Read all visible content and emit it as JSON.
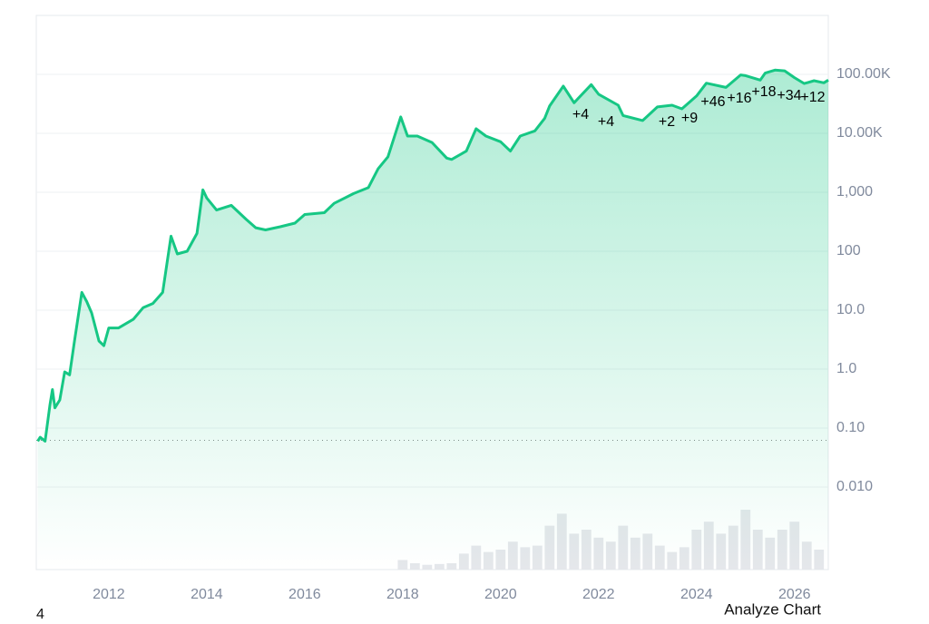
{
  "chart_data": {
    "type": "line",
    "log_scale": true,
    "grid": true,
    "color": "#16c784",
    "x": [
      2010.55,
      2010.6,
      2010.7,
      2010.8,
      2010.85,
      2010.9,
      2011.0,
      2011.1,
      2011.2,
      2011.3,
      2011.45,
      2011.55,
      2011.65,
      2011.8,
      2011.9,
      2012.0,
      2012.2,
      2012.5,
      2012.7,
      2012.9,
      2013.1,
      2013.27,
      2013.4,
      2013.6,
      2013.8,
      2013.92,
      2014.0,
      2014.2,
      2014.5,
      2014.8,
      2015.0,
      2015.2,
      2015.5,
      2015.8,
      2016.0,
      2016.4,
      2016.6,
      2017.0,
      2017.3,
      2017.5,
      2017.7,
      2017.96,
      2018.1,
      2018.3,
      2018.6,
      2018.9,
      2019.0,
      2019.3,
      2019.5,
      2019.7,
      2020.0,
      2020.2,
      2020.4,
      2020.7,
      2020.9,
      2021.0,
      2021.28,
      2021.5,
      2021.85,
      2022.0,
      2022.4,
      2022.5,
      2022.9,
      2023.2,
      2023.5,
      2023.7,
      2024.0,
      2024.2,
      2024.6,
      2024.9,
      2025.0,
      2025.3,
      2025.4,
      2025.6,
      2025.8,
      2026.0,
      2026.2,
      2026.4,
      2026.6,
      2026.69
    ],
    "values": [
      0.06,
      0.07,
      0.06,
      0.25,
      0.45,
      0.22,
      0.3,
      0.9,
      0.8,
      3,
      20,
      14,
      9,
      3,
      2.5,
      5,
      5,
      7,
      11,
      13,
      20,
      180,
      90,
      100,
      200,
      1100,
      800,
      500,
      600,
      350,
      250,
      230,
      260,
      300,
      420,
      450,
      650,
      950,
      1200,
      2500,
      4000,
      19000,
      9000,
      9000,
      7000,
      3800,
      3600,
      5000,
      12000,
      9000,
      7200,
      5000,
      9000,
      11000,
      18000,
      29000,
      63000,
      33000,
      67000,
      46000,
      30000,
      20000,
      16500,
      28000,
      30000,
      26000,
      43000,
      71000,
      60000,
      98000,
      95000,
      80000,
      105000,
      118000,
      115000,
      88000,
      70000,
      78000,
      72000,
      80000
    ],
    "xlim": [
      2010.52,
      2026.69
    ],
    "xticks": [
      2012,
      2014,
      2016,
      2018,
      2020,
      2022,
      2024,
      2026
    ],
    "ylim": [
      0.001,
      1000000
    ],
    "yticks": [
      {
        "value": 0.01,
        "label": "0.010"
      },
      {
        "value": 0.1,
        "label": "0.10"
      },
      {
        "value": 1,
        "label": "1.0"
      },
      {
        "value": 10,
        "label": "10.0"
      },
      100,
      {
        "value": 1000,
        "label": "1,000"
      },
      {
        "value": 10000,
        "label": "10.00K"
      },
      {
        "value": 100000,
        "label": "100.00K"
      }
    ],
    "reference_line": 0.062,
    "annotations": [
      "+4",
      "+4",
      "+2",
      "+9",
      "+46",
      "+16",
      "+18",
      "+34",
      "+12"
    ],
    "volume": {
      "color": "#e5e7eb",
      "ylim": [
        0,
        100
      ],
      "x": [
        2018.0,
        2018.25,
        2018.5,
        2018.75,
        2019.0,
        2019.25,
        2019.5,
        2019.75,
        2020.0,
        2020.25,
        2020.5,
        2020.75,
        2021.0,
        2021.25,
        2021.5,
        2021.75,
        2022.0,
        2022.25,
        2022.5,
        2022.75,
        2023.0,
        2023.25,
        2023.5,
        2023.75,
        2024.0,
        2024.25,
        2024.5,
        2024.75,
        2025.0,
        2025.25,
        2025.5,
        2025.75,
        2026.0,
        2026.25,
        2026.5
      ],
      "values": [
        12,
        8,
        6,
        7,
        8,
        20,
        30,
        22,
        25,
        35,
        28,
        30,
        55,
        70,
        45,
        50,
        40,
        35,
        55,
        40,
        45,
        30,
        22,
        28,
        50,
        60,
        45,
        55,
        75,
        50,
        40,
        50,
        60,
        35,
        25
      ]
    },
    "ui": {
      "page_number": "4",
      "action": "Analyze Chart"
    }
  }
}
